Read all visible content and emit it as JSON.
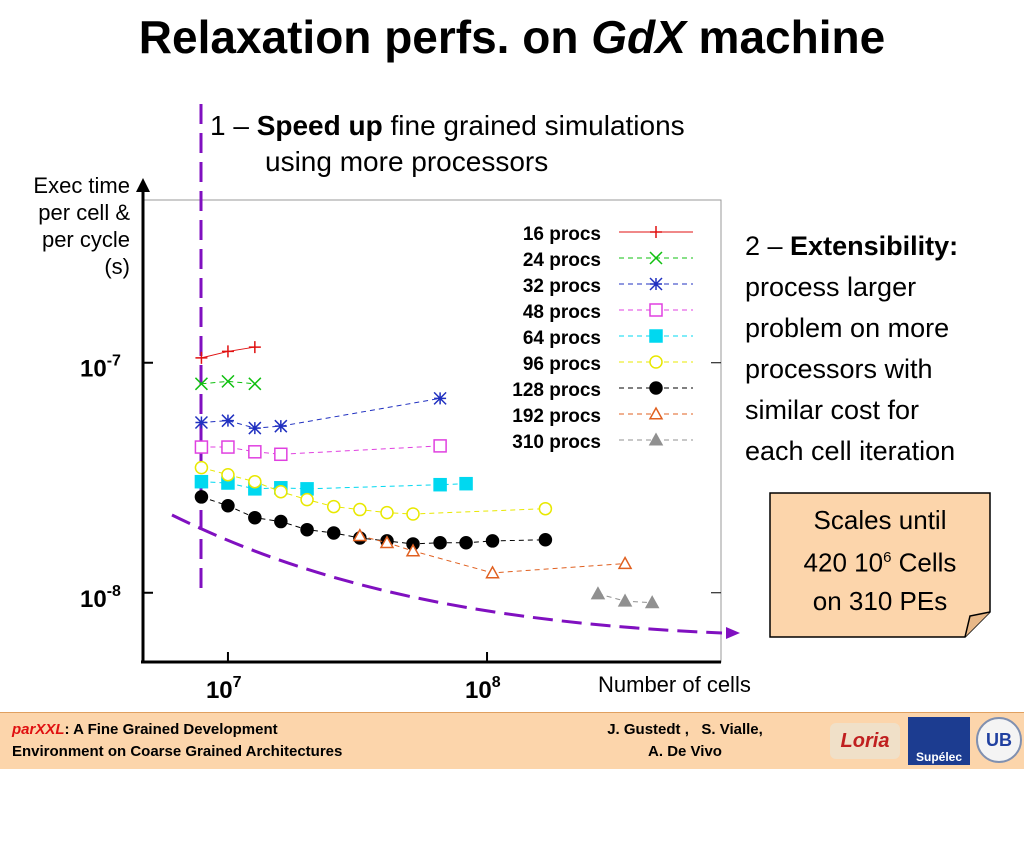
{
  "slide": {
    "title": [
      "Relaxation perfs. on ",
      "GdX",
      " machine"
    ],
    "annotation1": {
      "prefix": "1 – ",
      "bold": "Speed up",
      "rest": " fine grained simulations",
      "line2": "using more processors"
    },
    "annotation2": {
      "prefix": "2 – ",
      "bold": "Extensibility:",
      "lines": [
        "process larger",
        "problem on more",
        "processors with",
        "similar cost for",
        "each cell iteration"
      ]
    },
    "note": {
      "line1": "Scales until",
      "line2": "420 10",
      "line2_sup": "6",
      "line2_end": " Cells",
      "line3": "on 310 PEs"
    },
    "footer": {
      "brand": "parXXL",
      "line1": ": A Fine Grained Development",
      "line2": "Environment on Coarse Grained Architectures",
      "authors1": "J. Gustedt ,   S. Vialle,",
      "authors2": "A. De Vivo",
      "logo1": "Loria",
      "logo2": "Supélec",
      "logo3": "UB"
    }
  },
  "chart_data": {
    "type": "line",
    "xlabel": "Number of cells",
    "ylabel": [
      "Exec time",
      "per cell &",
      "per cycle",
      "(s)"
    ],
    "xscale": "log",
    "yscale": "log",
    "xlim": [
      4700000,
      800000000
    ],
    "ylim": [
      5e-09,
      5.1e-07
    ],
    "xticks": [
      {
        "value": 10000000,
        "label": "10",
        "exponent": "7"
      },
      {
        "value": 100000000,
        "label": "10",
        "exponent": "8"
      }
    ],
    "yticks": [
      {
        "value": 1e-08,
        "label": "10",
        "exponent": "-8"
      },
      {
        "value": 1e-07,
        "label": "10",
        "exponent": "-7"
      }
    ],
    "legend": "upper right",
    "series": [
      {
        "name": "16 procs",
        "color": "#e01010",
        "marker": "plus",
        "x": [
          7900000,
          10000000,
          12700000
        ],
        "values": [
          1.05e-07,
          1.12e-07,
          1.17e-07
        ]
      },
      {
        "name": "24 procs",
        "color": "#10c010",
        "marker": "cross",
        "x": [
          7900000,
          10000000,
          12700000
        ],
        "values": [
          8.1e-08,
          8.3e-08,
          8.1e-08
        ]
      },
      {
        "name": "32 procs",
        "color": "#2030c0",
        "marker": "star",
        "x": [
          7900000,
          10000000,
          12700000,
          16000000,
          65900000
        ],
        "values": [
          5.5e-08,
          5.6e-08,
          5.2e-08,
          5.3e-08,
          7e-08
        ]
      },
      {
        "name": "48 procs",
        "color": "#e040e0",
        "marker": "square-open",
        "x": [
          7900000,
          10000000,
          12700000,
          16000000,
          65900000
        ],
        "values": [
          4.3e-08,
          4.3e-08,
          4.1e-08,
          4e-08,
          4.35e-08
        ]
      },
      {
        "name": "64 procs",
        "color": "#00d8f0",
        "marker": "square",
        "x": [
          7900000,
          10000000,
          12700000,
          16000000,
          20200000,
          65900000,
          83000000
        ],
        "values": [
          3.04e-08,
          3e-08,
          2.83e-08,
          2.86e-08,
          2.83e-08,
          2.95e-08,
          2.98e-08
        ]
      },
      {
        "name": "96 procs",
        "color": "#e8e800",
        "marker": "circle-open",
        "x": [
          7900000,
          10000000,
          12700000,
          16000000,
          20200000,
          25600000,
          32300000,
          41100000,
          51800000,
          168000000
        ],
        "values": [
          3.5e-08,
          3.26e-08,
          3.04e-08,
          2.75e-08,
          2.54e-08,
          2.37e-08,
          2.3e-08,
          2.23e-08,
          2.2e-08,
          2.32e-08
        ]
      },
      {
        "name": "128 procs",
        "color": "#000000",
        "marker": "circle",
        "x": [
          7900000,
          10000000,
          12700000,
          16000000,
          20200000,
          25600000,
          32300000,
          41100000,
          51800000,
          65900000,
          83000000,
          105000000,
          168000000
        ],
        "values": [
          2.61e-08,
          2.39e-08,
          2.12e-08,
          2.04e-08,
          1.88e-08,
          1.82e-08,
          1.73e-08,
          1.68e-08,
          1.63e-08,
          1.65e-08,
          1.65e-08,
          1.68e-08,
          1.7e-08
        ]
      },
      {
        "name": "192 procs",
        "color": "#e06020",
        "marker": "triangle-open",
        "x": [
          32300000,
          41100000,
          51800000,
          105000000,
          341000000
        ],
        "values": [
          1.77e-08,
          1.65e-08,
          1.52e-08,
          1.22e-08,
          1.34e-08
        ]
      },
      {
        "name": "310 procs",
        "color": "#909090",
        "marker": "triangle",
        "x": [
          268000000,
          341000000,
          434000000
        ],
        "values": [
          9.9e-09,
          9.2e-09,
          9.05e-09
        ]
      }
    ]
  }
}
